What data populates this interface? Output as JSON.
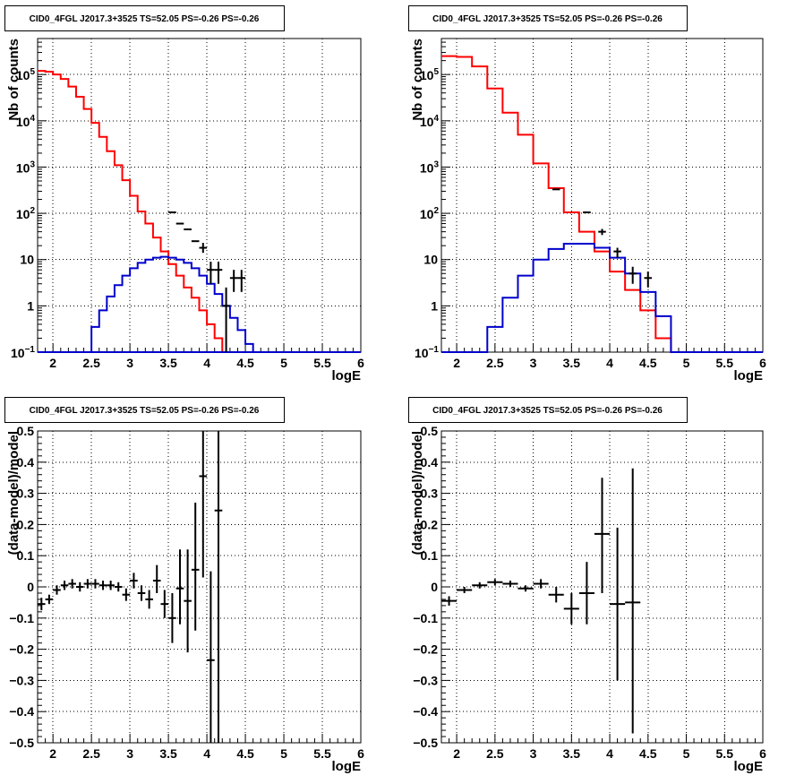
{
  "chart_data": [
    {
      "type": "histogram",
      "title": "CID0_4FGL J2017.3+3525 TS=52.05 PS=-0.26 PS=-0.26",
      "xlabel": "logE",
      "ylabel": "Nb of counts",
      "xlim": [
        1.8,
        6.0
      ],
      "ylim": [
        0.1,
        600000
      ],
      "yscale": "log",
      "grid": true,
      "xticks": [
        "2",
        "2.5",
        "3",
        "3.5",
        "4",
        "4.5",
        "5",
        "5.5",
        "6"
      ],
      "yticks": [
        "10^-1",
        "1",
        "10",
        "10^2",
        "10^3",
        "10^4",
        "10^5"
      ],
      "bin_edges": [
        1.8,
        1.9,
        2.0,
        2.1,
        2.2,
        2.3,
        2.4,
        2.5,
        2.6,
        2.7,
        2.8,
        2.9,
        3.0,
        3.1,
        3.2,
        3.3,
        3.4,
        3.5,
        3.6,
        3.7,
        3.8,
        3.9,
        4.0,
        4.1,
        4.2,
        4.3,
        4.4,
        4.5,
        4.6,
        4.7,
        4.8,
        4.9,
        5.0,
        5.1,
        5.2,
        5.3,
        5.4,
        5.5,
        5.6,
        5.7,
        5.8,
        5.9,
        6.0
      ],
      "series": [
        {
          "name": "",
          "color": "#ff0000",
          "values": [
            120000,
            115000,
            100000,
            80000,
            55000,
            33000,
            18000,
            9000,
            4500,
            2200,
            1100,
            520,
            240,
            110,
            60,
            30,
            15,
            8,
            4.5,
            2.5,
            1.5,
            0.8,
            0.4,
            0.2,
            0.1,
            0.1,
            0.1,
            0.1,
            0.1,
            0.1,
            0.1,
            0.1,
            0.1,
            0.1,
            0.1,
            0.1,
            0.1,
            0.1,
            0.1,
            0.1,
            0.1,
            0.1
          ]
        },
        {
          "name": "",
          "color": "#0000cc",
          "values": [
            0.1,
            0.1,
            0.1,
            0.1,
            0.1,
            0.1,
            0.1,
            0.1,
            0.1,
            0.1,
            0.1,
            0.1,
            0.1,
            0.1,
            0.1,
            0.1,
            0.1,
            0.1,
            0.1,
            0.1,
            0.1,
            0.1,
            0.1,
            0.1,
            0.1,
            0.1,
            0.1,
            0.1,
            0.1,
            0.1,
            0.1,
            0.1,
            0.1,
            0.1,
            0.1,
            0.1,
            0.1,
            0.1,
            0.1,
            0.1,
            0.1,
            0.1
          ]
        },
        {
          "name": "",
          "color": "#0000cc",
          "values": [
            0.1,
            0.1,
            0.1,
            0.1,
            0.1,
            0.1,
            0.1,
            0.35,
            0.8,
            1.6,
            2.8,
            4.5,
            6.5,
            8.5,
            10,
            11,
            11.5,
            11,
            10,
            8.5,
            6.5,
            4.5,
            3,
            1.8,
            1,
            0.55,
            0.3,
            0.15,
            0.1,
            0.1,
            0.1,
            0.1,
            0.1,
            0.1,
            0.1,
            0.1,
            0.1,
            0.1,
            0.1,
            0.1,
            0.1,
            0.1
          ]
        },
        {
          "name": "",
          "color": "#000000",
          "type": "errorbars",
          "points": [
            [
              3.55,
              105,
              0,
              0
            ],
            [
              3.65,
              60,
              0,
              0
            ],
            [
              3.75,
              45,
              0,
              0
            ],
            [
              3.85,
              25,
              0,
              0
            ],
            [
              3.95,
              18,
              14,
              23
            ],
            [
              4.05,
              6,
              3,
              9
            ],
            [
              4.15,
              6,
              3,
              9
            ],
            [
              4.25,
              1,
              0.1,
              2.5
            ],
            [
              4.35,
              4,
              2,
              6
            ],
            [
              4.45,
              4,
              2,
              6
            ]
          ]
        }
      ]
    },
    {
      "type": "histogram",
      "title": "CID0_4FGL J2017.3+3525 TS=52.05 PS=-0.26 PS=-0.26",
      "xlabel": "logE",
      "ylabel": "Nb of counts",
      "xlim": [
        1.8,
        6.0
      ],
      "ylim": [
        0.1,
        600000
      ],
      "yscale": "log",
      "grid": true,
      "xticks": [
        "2",
        "2.5",
        "3",
        "3.5",
        "4",
        "4.5",
        "5",
        "5.5",
        "6"
      ],
      "yticks": [
        "10^-1",
        "1",
        "10",
        "10^2",
        "10^3",
        "10^4",
        "10^5"
      ],
      "bin_edges": [
        1.8,
        2.0,
        2.2,
        2.4,
        2.6,
        2.8,
        3.0,
        3.2,
        3.4,
        3.6,
        3.8,
        4.0,
        4.2,
        4.4,
        4.6,
        4.8,
        5.0,
        5.2,
        5.4,
        5.6,
        5.8,
        6.0
      ],
      "series": [
        {
          "name": "",
          "color": "#ff0000",
          "values": [
            250000,
            240000,
            150000,
            50000,
            15000,
            5000,
            1200,
            350,
            105,
            40,
            15,
            5.5,
            2.2,
            0.8,
            0.2,
            0.1,
            0.1,
            0.1,
            0.1,
            0.1,
            0.1
          ]
        },
        {
          "name": "",
          "color": "#0000cc",
          "values": [
            0.1,
            0.1,
            0.1,
            0.35,
            1.5,
            4.5,
            10,
            17,
            22,
            22,
            18,
            11,
            5,
            2,
            0.6,
            0.1,
            0.1,
            0.1,
            0.1,
            0.1,
            0.1
          ]
        },
        {
          "name": "",
          "color": "#000000",
          "type": "errorbars",
          "points": [
            [
              3.3,
              330,
              0,
              0
            ],
            [
              3.7,
              105,
              0,
              0
            ],
            [
              3.9,
              40,
              34,
              46
            ],
            [
              4.1,
              15,
              11,
              18
            ],
            [
              4.3,
              5,
              3,
              7
            ],
            [
              4.5,
              4,
              2.5,
              5.5
            ]
          ]
        }
      ]
    },
    {
      "type": "scatter",
      "title": "CID0_4FGL J2017.3+3525 TS=52.05 PS=-0.26 PS=-0.26",
      "xlabel": "logE",
      "ylabel": "(data-model)/model",
      "xlim": [
        1.8,
        6.0
      ],
      "ylim": [
        -0.5,
        0.5
      ],
      "grid": true,
      "xticks": [
        "2",
        "2.5",
        "3",
        "3.5",
        "4",
        "4.5",
        "5",
        "5.5",
        "6"
      ],
      "yticks": [
        "-0.5",
        "-0.4",
        "-0.3",
        "-0.2",
        "-0.1",
        "0",
        "0.1",
        "0.2",
        "0.3",
        "0.4",
        "0.5"
      ],
      "xerr": 0.05,
      "points": [
        [
          1.85,
          -0.055,
          -0.075,
          -0.035
        ],
        [
          1.95,
          -0.04,
          -0.055,
          -0.025
        ],
        [
          2.05,
          -0.01,
          -0.025,
          0.005
        ],
        [
          2.15,
          0.005,
          -0.01,
          0.02
        ],
        [
          2.25,
          0.01,
          -0.005,
          0.025
        ],
        [
          2.35,
          0.0,
          -0.015,
          0.015
        ],
        [
          2.45,
          0.01,
          -0.005,
          0.025
        ],
        [
          2.55,
          0.01,
          -0.005,
          0.025
        ],
        [
          2.65,
          0.005,
          -0.01,
          0.02
        ],
        [
          2.75,
          0.005,
          -0.01,
          0.02
        ],
        [
          2.85,
          0.0,
          -0.015,
          0.015
        ],
        [
          2.95,
          -0.025,
          -0.045,
          -0.005
        ],
        [
          3.05,
          0.02,
          -0.005,
          0.045
        ],
        [
          3.15,
          -0.02,
          -0.045,
          0.005
        ],
        [
          3.25,
          -0.04,
          -0.07,
          -0.01
        ],
        [
          3.35,
          0.02,
          -0.02,
          0.07
        ],
        [
          3.45,
          -0.055,
          -0.1,
          -0.01
        ],
        [
          3.55,
          -0.1,
          -0.18,
          -0.02
        ],
        [
          3.65,
          -0.005,
          -0.12,
          0.12
        ],
        [
          3.75,
          -0.045,
          -0.21,
          0.12
        ],
        [
          3.85,
          0.055,
          -0.14,
          0.27
        ],
        [
          3.95,
          0.355,
          0.03,
          0.5
        ],
        [
          4.05,
          -0.235,
          -0.5,
          0.05
        ],
        [
          4.15,
          0.245,
          -0.5,
          0.5
        ]
      ]
    },
    {
      "type": "scatter",
      "title": "CID0_4FGL J2017.3+3525 TS=52.05 PS=-0.26 PS=-0.26",
      "xlabel": "logE",
      "ylabel": "(data-model)/model",
      "xlim": [
        1.8,
        6.0
      ],
      "ylim": [
        -0.5,
        0.5
      ],
      "grid": true,
      "xticks": [
        "2",
        "2.5",
        "3",
        "3.5",
        "4",
        "4.5",
        "5",
        "5.5",
        "6"
      ],
      "yticks": [
        "-0.5",
        "-0.4",
        "-0.3",
        "-0.2",
        "-0.1",
        "0",
        "0.1",
        "0.2",
        "0.3",
        "0.4",
        "0.5"
      ],
      "xerr": 0.1,
      "points": [
        [
          1.9,
          -0.045,
          -0.06,
          -0.03
        ],
        [
          2.1,
          -0.01,
          -0.02,
          0.0
        ],
        [
          2.3,
          0.005,
          -0.005,
          0.015
        ],
        [
          2.5,
          0.015,
          0.005,
          0.025
        ],
        [
          2.7,
          0.01,
          0.0,
          0.02
        ],
        [
          2.9,
          -0.005,
          -0.015,
          0.005
        ],
        [
          3.1,
          0.01,
          -0.005,
          0.025
        ],
        [
          3.3,
          -0.025,
          -0.05,
          0.0
        ],
        [
          3.5,
          -0.07,
          -0.12,
          -0.02
        ],
        [
          3.7,
          -0.02,
          -0.12,
          0.08
        ],
        [
          3.9,
          0.17,
          -0.02,
          0.35
        ],
        [
          4.1,
          -0.055,
          -0.3,
          0.19
        ],
        [
          4.3,
          -0.05,
          -0.47,
          0.38
        ]
      ]
    }
  ]
}
